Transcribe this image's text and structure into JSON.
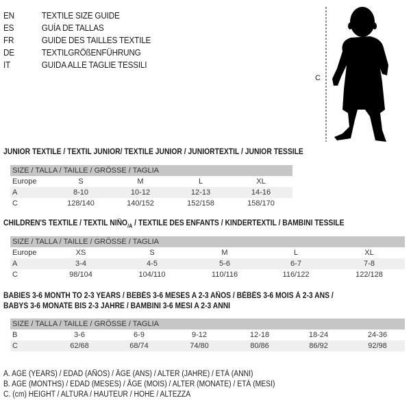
{
  "languages": [
    {
      "code": "EN",
      "name": "TEXTILE SIZE GUIDE"
    },
    {
      "code": "ES",
      "name": "GUÍA DE TALLAS"
    },
    {
      "code": "FR",
      "name": "GUIDE DES TAILLES TEXTILE"
    },
    {
      "code": "DE",
      "name": "TEXTILGRÖßENFÜHRUNG"
    },
    {
      "code": "IT",
      "name": "GUIDA ALLE TAGLIE TESSILI"
    }
  ],
  "figure": {
    "measure_label": "C",
    "icon": "child-silhouette"
  },
  "size_header": "SIZE / TALLA / TAILLE / GRÖSSE / TAGLIA",
  "sections": [
    {
      "title": "JUNIOR TEXTILE / TEXTIL JUNIOR/ TEXTILE JUNIOR / JUNIORTEXTIL / JUNIOR TESSILE",
      "rows": [
        {
          "label": "Europe",
          "values": [
            "S",
            "M",
            "L",
            "XL"
          ]
        },
        {
          "label": "A",
          "values": [
            "8-10",
            "10-12",
            "12-13",
            "14-16"
          ]
        },
        {
          "label": "C",
          "values": [
            "128/140",
            "140/152",
            "152/158",
            "158/170"
          ]
        }
      ]
    },
    {
      "title": "CHILDREN'S TEXTILE / TEXTIL NIÑO",
      "title_sub": "/A",
      "title_rest": " / TEXTILE DES ENFANTS / KINDERTEXTIL / BAMBINI TESSILE",
      "rows": [
        {
          "label": "Europe",
          "values": [
            "XS",
            "S",
            "M",
            "L",
            "XL"
          ]
        },
        {
          "label": "A",
          "values": [
            "3-4",
            "4-5",
            "5-6",
            "6-7",
            "7-8"
          ]
        },
        {
          "label": "C",
          "values": [
            "98/104",
            "104/110",
            "110/116",
            "116/122",
            "122/128"
          ]
        }
      ]
    },
    {
      "title": "BABIES 3-6 MONTH TO 2-3 YEARS / BEBÉS 3-6 MESES A 2-3 AÑOS / BÉBÉS 3-6 MOIS À 2-3 ANS /",
      "title2": "BABYS 3-6 MONATE BIS 2-3 JAHRE / BAMBINI 3-6 MESI A 2-3 ANNI",
      "rows": [
        {
          "label": "B",
          "values": [
            "3-6",
            "6-9",
            "9-12",
            "12-18",
            "18-24",
            "24-36"
          ]
        },
        {
          "label": "C",
          "values": [
            "62/68",
            "68/74",
            "74/80",
            "80/86",
            "86/92",
            "92/98"
          ]
        }
      ]
    }
  ],
  "footnotes": [
    "A. AGE (YEARS) / EDAD (AÑOS) / ÂGE (ANS) / ALTER (JAHRE) / ETÀ (ANNI)",
    "B. AGE (MONTHS) / EDAD (MESES) / ÂGE (MOIS) / ALTER (MONATE) / ETÀ (MESI)",
    "C. (cm) HEIGHT / ALTURA / HAUTEUR / HÖHE / ALTEZZA"
  ]
}
